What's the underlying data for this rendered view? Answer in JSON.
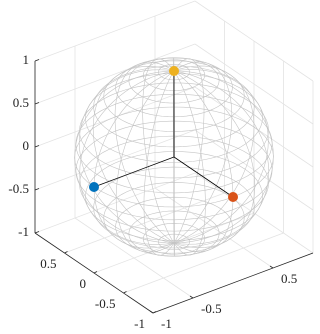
{
  "chart_data": {
    "type": "scatter3",
    "series": [
      {
        "color": "#0072bd",
        "x": [
          -1
        ],
        "y": [
          0
        ],
        "z": [
          0
        ]
      },
      {
        "color": "#d95319",
        "x": [
          0
        ],
        "y": [
          -1
        ],
        "z": [
          0
        ]
      },
      {
        "color": "#edb120",
        "x": [
          0
        ],
        "y": [
          0
        ],
        "z": [
          1
        ]
      }
    ],
    "xlim": [
      -1,
      1
    ],
    "ylim": [
      -1,
      1
    ],
    "zlim": [
      -1,
      1
    ],
    "xticks": [
      -1,
      -0.5,
      0.5
    ],
    "yticks": [
      -1,
      -0.5,
      0,
      0.5
    ],
    "zticks": [
      -1,
      -0.5,
      0,
      0.5,
      1
    ],
    "grid": true
  }
}
